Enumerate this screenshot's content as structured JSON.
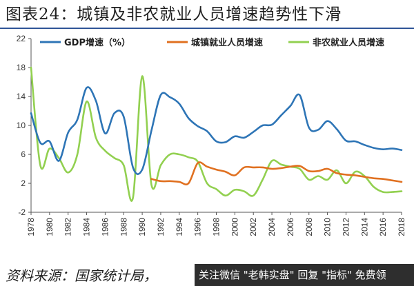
{
  "title": "图表24：城镇及非农就业人员增速趋势性下滑",
  "source": "资料来源：国家统计局，",
  "watermark": "关注微信 \"老韩实盘\" 回复 \"指标\" 免费领",
  "colors": {
    "gdp": "#2e75b6",
    "urban": "#e07020",
    "nonfarm": "#92d050",
    "rule": "#2f5597"
  },
  "chart_data": {
    "type": "line",
    "title": "",
    "xlabel": "",
    "ylabel": "",
    "xlim": [
      1978,
      2018
    ],
    "ylim": [
      -2,
      22
    ],
    "yticks": [
      -2,
      2,
      6,
      10,
      14,
      18,
      22
    ],
    "xticks": [
      1978,
      1980,
      1982,
      1984,
      1986,
      1988,
      1990,
      1992,
      1994,
      1996,
      1998,
      2000,
      2002,
      2004,
      2006,
      2008,
      2010,
      2012,
      2014,
      2016,
      2018
    ],
    "grid": false,
    "legend": "top",
    "series": [
      {
        "name": "GDP增速（%）",
        "color": "#2e75b6",
        "x": [
          1978,
          1979,
          1980,
          1981,
          1982,
          1983,
          1984,
          1985,
          1986,
          1987,
          1988,
          1989,
          1990,
          1991,
          1992,
          1993,
          1994,
          1995,
          1996,
          1997,
          1998,
          1999,
          2000,
          2001,
          2002,
          2003,
          2004,
          2005,
          2006,
          2007,
          2008,
          2009,
          2010,
          2011,
          2012,
          2013,
          2014,
          2015,
          2016,
          2017,
          2018
        ],
        "values": [
          11.7,
          7.6,
          7.8,
          5.1,
          9.0,
          10.8,
          15.2,
          13.4,
          8.9,
          11.7,
          11.2,
          4.2,
          3.9,
          9.3,
          14.2,
          13.9,
          13.0,
          11.0,
          9.9,
          9.2,
          7.8,
          7.7,
          8.5,
          8.3,
          9.1,
          10.0,
          10.1,
          11.4,
          12.7,
          14.2,
          9.7,
          9.4,
          10.6,
          9.5,
          7.9,
          7.8,
          7.3,
          6.9,
          6.7,
          6.8,
          6.6
        ]
      },
      {
        "name": "城镇就业人员增速",
        "color": "#e07020",
        "x": [
          1991,
          1992,
          1993,
          1994,
          1995,
          1996,
          1997,
          1998,
          1999,
          2000,
          2001,
          2002,
          2003,
          2004,
          2005,
          2006,
          2007,
          2008,
          2009,
          2010,
          2011,
          2012,
          2013,
          2014,
          2015,
          2016,
          2017,
          2018
        ],
        "values": [
          2.6,
          2.3,
          2.3,
          2.2,
          2.0,
          4.8,
          4.3,
          3.9,
          3.6,
          3.1,
          4.2,
          4.2,
          4.2,
          4.0,
          4.1,
          4.3,
          4.4,
          3.7,
          3.7,
          4.0,
          3.4,
          3.2,
          3.1,
          2.9,
          2.7,
          2.6,
          2.4,
          2.2
        ]
      },
      {
        "name": "非农就业人员增速",
        "color": "#92d050",
        "x": [
          1978,
          1979,
          1980,
          1981,
          1982,
          1983,
          1984,
          1985,
          1986,
          1987,
          1988,
          1989,
          1990,
          1991,
          1992,
          1993,
          1994,
          1995,
          1996,
          1997,
          1998,
          1999,
          2000,
          2001,
          2002,
          2003,
          2004,
          2005,
          2006,
          2007,
          2008,
          2009,
          2010,
          2011,
          2012,
          2013,
          2014,
          2015,
          2016,
          2017,
          2018
        ],
        "values": [
          18.0,
          4.5,
          6.8,
          5.5,
          3.5,
          6.0,
          13.3,
          8.3,
          6.5,
          5.5,
          4.5,
          0.0,
          16.8,
          1.8,
          4.5,
          6.0,
          6.0,
          5.6,
          5.0,
          2.0,
          1.2,
          0.3,
          1.1,
          0.9,
          0.3,
          2.5,
          5.1,
          4.6,
          4.3,
          4.0,
          2.5,
          3.0,
          2.5,
          3.8,
          2.0,
          3.6,
          3.0,
          1.5,
          0.8,
          0.8,
          0.9
        ]
      }
    ]
  }
}
